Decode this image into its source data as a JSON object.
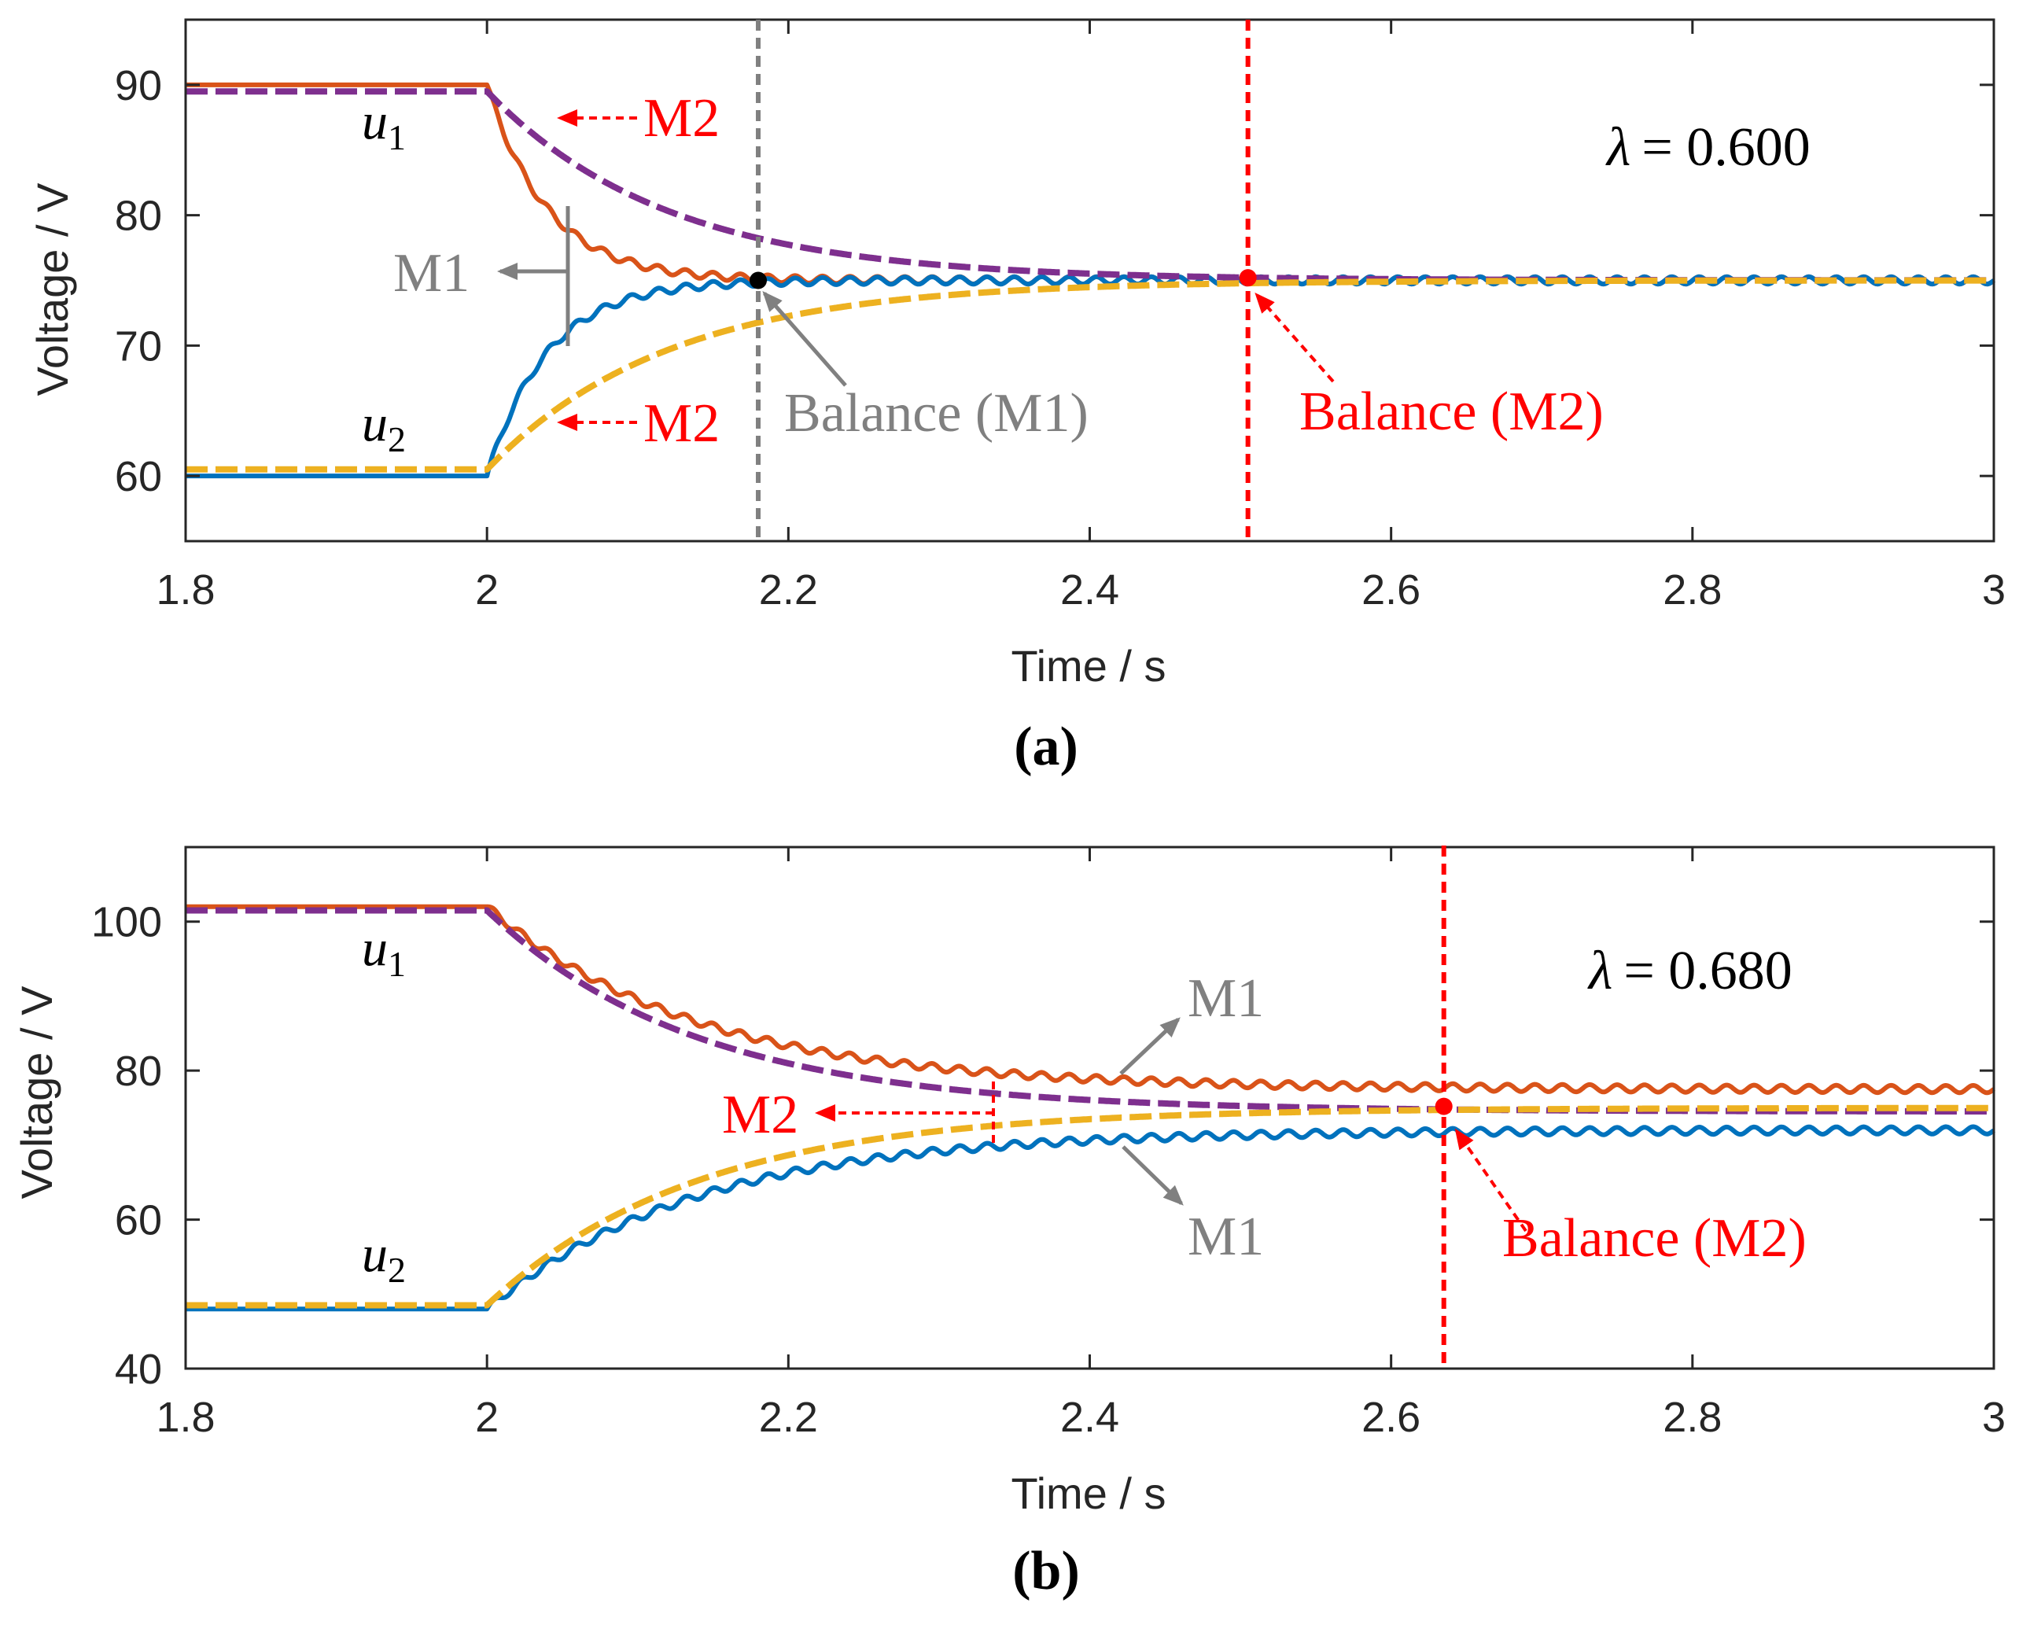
{
  "chart_data": [
    {
      "type": "line",
      "panel_label": "a",
      "xlabel": "Time / s",
      "ylabel": "Voltage / V",
      "xlim": [
        1.8,
        3.0
      ],
      "ylim": [
        55,
        95
      ],
      "x_ticks": [
        1.8,
        2.0,
        2.2,
        2.4,
        2.6,
        2.8,
        3.0
      ],
      "x_tick_labels": [
        "1.8",
        "2",
        "2.2",
        "2.4",
        "2.6",
        "2.8",
        "3"
      ],
      "y_ticks": [
        60,
        70,
        80,
        90
      ],
      "y_tick_labels": [
        "60",
        "70",
        "80",
        "90"
      ],
      "grid": false,
      "step_time": 2.0,
      "series": [
        {
          "name": "u1 (M1)",
          "color": "#D95319",
          "style": "solid",
          "ripple": true,
          "initial": 90,
          "final": 75,
          "tau": 0.04
        },
        {
          "name": "u2 (M1)",
          "color": "#0072BD",
          "style": "solid",
          "ripple": true,
          "initial": 60,
          "final": 75,
          "tau": 0.04
        },
        {
          "name": "u1 (M2)",
          "color": "#7E2F8E",
          "style": "dashed",
          "ripple": false,
          "initial": 89.5,
          "final": 75,
          "tau": 0.12
        },
        {
          "name": "u2 (M2)",
          "color": "#EDB120",
          "style": "dashed",
          "ripple": false,
          "initial": 60.5,
          "final": 75,
          "tau": 0.12
        }
      ],
      "balance_points": [
        {
          "label": "Balance (M1)",
          "x": 2.18,
          "y": 75,
          "color": "#000000",
          "line_color": "#808080"
        },
        {
          "label": "Balance (M2)",
          "x": 2.505,
          "y": 75.2,
          "color": "#FF0000",
          "line_color": "#FF0000"
        }
      ],
      "annotations": {
        "u1": "u",
        "u1_sub": "1",
        "u2": "u",
        "u2_sub": "2",
        "m1": "M1",
        "m2_upper": "M2",
        "m2_lower": "M2",
        "balance_m1": "Balance (M1)",
        "balance_m2": "Balance (M2)",
        "lambda_symbol": "λ",
        "lambda_value": "= 0.600"
      },
      "caption": "(a)"
    },
    {
      "type": "line",
      "panel_label": "b",
      "xlabel": "Time / s",
      "ylabel": "Voltage / V",
      "xlim": [
        1.8,
        3.0
      ],
      "ylim": [
        40,
        110
      ],
      "x_ticks": [
        1.8,
        2.0,
        2.2,
        2.4,
        2.6,
        2.8,
        3.0
      ],
      "x_tick_labels": [
        "1.8",
        "2",
        "2.2",
        "2.4",
        "2.6",
        "2.8",
        "3"
      ],
      "y_ticks": [
        40,
        60,
        80,
        100
      ],
      "y_tick_labels": [
        "40",
        "60",
        "80",
        "100"
      ],
      "grid": false,
      "step_time": 2.0,
      "series": [
        {
          "name": "u1 (M1)",
          "color": "#D95319",
          "style": "solid",
          "ripple": true,
          "initial": 102,
          "final": 77.5,
          "tau": 0.14
        },
        {
          "name": "u2 (M1)",
          "color": "#0072BD",
          "style": "solid",
          "ripple": true,
          "initial": 48,
          "final": 72,
          "tau": 0.14
        },
        {
          "name": "u1 (M2)",
          "color": "#7E2F8E",
          "style": "dashed",
          "ripple": false,
          "initial": 101.5,
          "final": 74.5,
          "tau": 0.14
        },
        {
          "name": "u2 (M2)",
          "color": "#EDB120",
          "style": "dashed",
          "ripple": false,
          "initial": 48.5,
          "final": 75,
          "tau": 0.14
        }
      ],
      "balance_points": [
        {
          "label": "Balance (M2)",
          "x": 2.635,
          "y": 75.2,
          "color": "#FF0000",
          "line_color": "#FF0000"
        }
      ],
      "annotations": {
        "u1": "u",
        "u1_sub": "1",
        "u2": "u",
        "u2_sub": "2",
        "m1_upper": "M1",
        "m1_lower": "M1",
        "m2": "M2",
        "balance_m2": "Balance (M2)",
        "lambda_symbol": "λ",
        "lambda_value": "= 0.680"
      },
      "caption": "(b)"
    }
  ]
}
